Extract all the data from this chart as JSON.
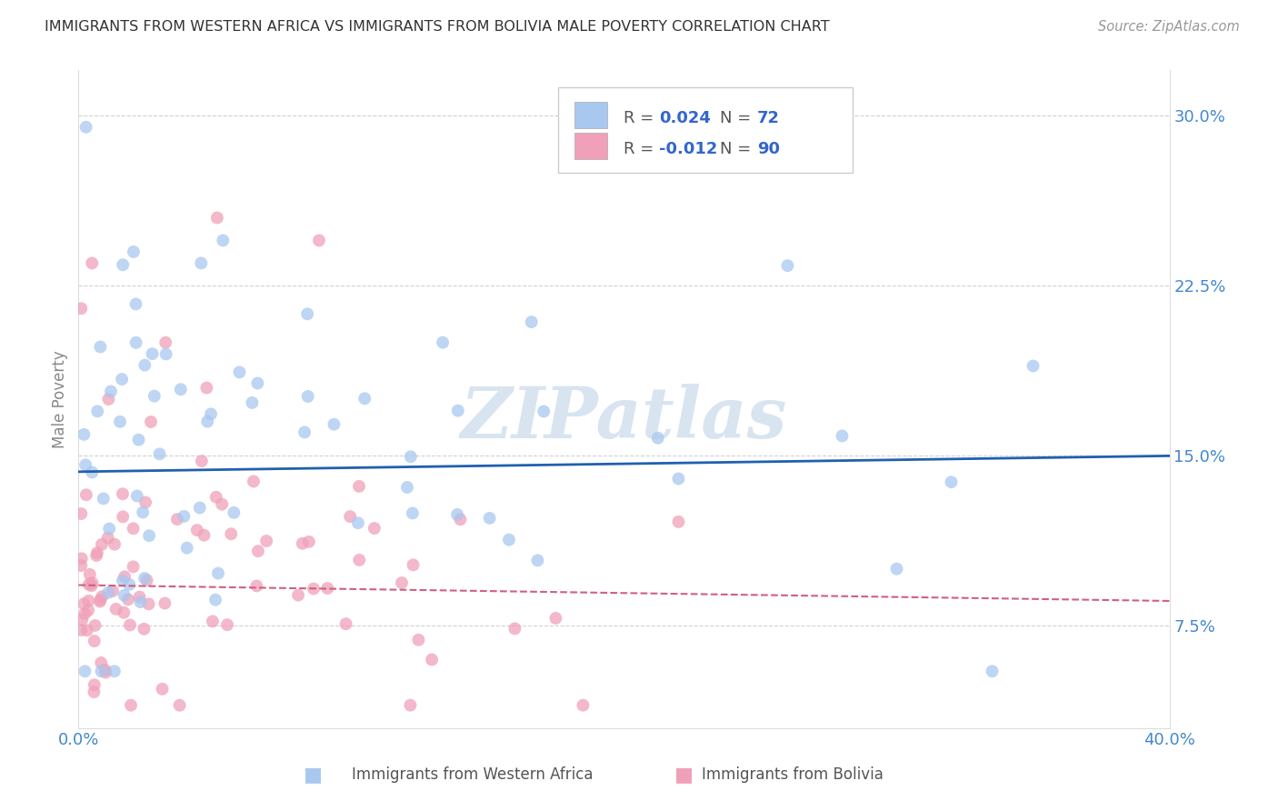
{
  "title": "IMMIGRANTS FROM WESTERN AFRICA VS IMMIGRANTS FROM BOLIVIA MALE POVERTY CORRELATION CHART",
  "source": "Source: ZipAtlas.com",
  "ylabel": "Male Poverty",
  "yticks": [
    0.075,
    0.15,
    0.225,
    0.3
  ],
  "ytick_labels": [
    "7.5%",
    "15.0%",
    "22.5%",
    "30.0%"
  ],
  "xlim": [
    0.0,
    0.4
  ],
  "ylim": [
    0.03,
    0.32
  ],
  "r_blue": 0.024,
  "n_blue": 72,
  "r_pink": -0.012,
  "n_pink": 90,
  "legend_label_blue": "Immigrants from Western Africa",
  "legend_label_pink": "Immigrants from Bolivia",
  "color_blue": "#A8C8F0",
  "color_pink": "#F0A0B8",
  "trendline_blue": "#2060B0",
  "trendline_pink": "#D06080",
  "background_color": "#ffffff",
  "watermark_text": "ZIPatlas",
  "watermark_color": "#D8E4F0",
  "grid_color": "#CCCCCC",
  "title_color": "#333333",
  "source_color": "#999999",
  "axis_label_color": "#4488CC",
  "legend_value_color": "#3366CC"
}
